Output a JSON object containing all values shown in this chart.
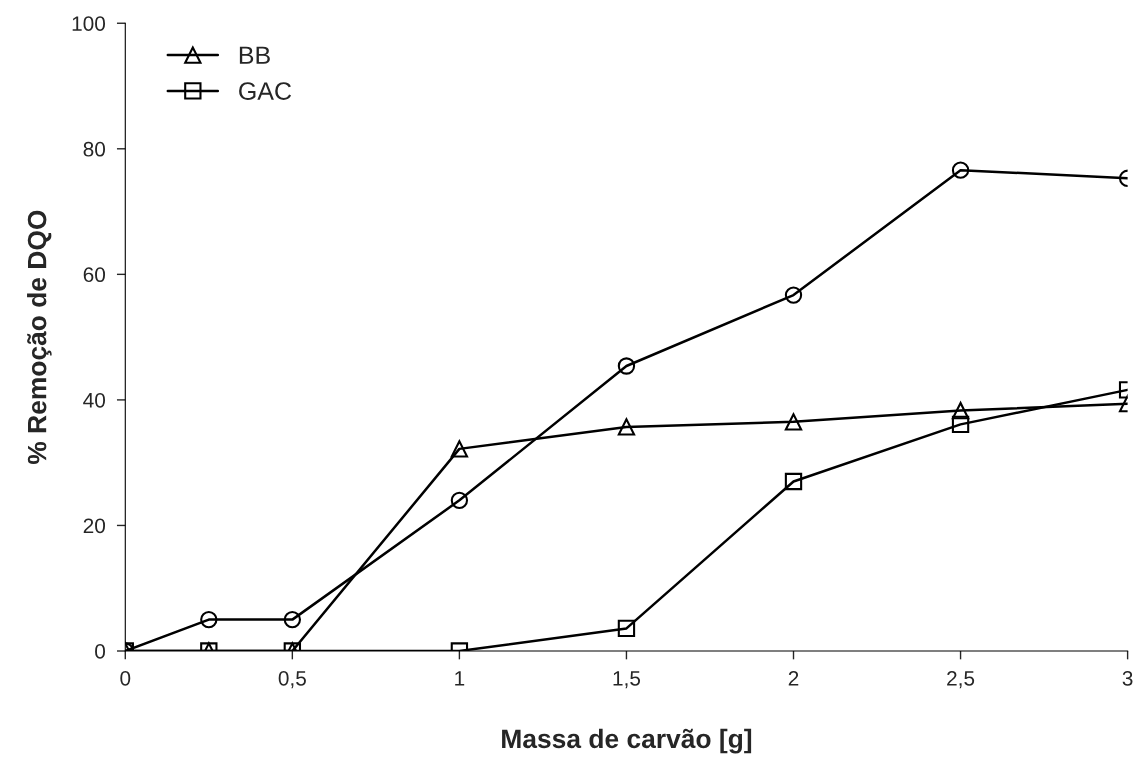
{
  "chart_data": {
    "type": "line",
    "xlabel": "Massa de carvão [g]",
    "ylabel": "% Remoção de DQO",
    "x": [
      0,
      0.25,
      0.5,
      1,
      1.5,
      2,
      2.5,
      3
    ],
    "series": [
      {
        "color": "#000000",
        "marker": "circle",
        "values": [
          0,
          5,
          5,
          24,
          45.4,
          56.7,
          76.6,
          75.3
        ]
      },
      {
        "name": "BB",
        "color": "#000000",
        "marker": "triangle",
        "values": [
          0,
          0,
          0,
          32.2,
          35.7,
          36.5,
          38.3,
          39.4
        ]
      },
      {
        "name": "GAC",
        "color": "#000000",
        "marker": "square",
        "values": [
          0,
          0,
          0,
          0,
          3.6,
          27,
          36.1,
          41.6
        ]
      }
    ],
    "xlim": [
      0,
      3
    ],
    "ylim": [
      0,
      100
    ],
    "xticks": [
      0,
      {
        "value": 0.5,
        "label": "0,5"
      },
      1,
      {
        "value": 1.5,
        "label": "1,5"
      },
      2,
      {
        "value": 2.5,
        "label": "2,5"
      },
      3
    ],
    "yticks": [
      0,
      20,
      40,
      60,
      80,
      100
    ],
    "grid": false,
    "legend": "top left",
    "line_style": "solid"
  }
}
